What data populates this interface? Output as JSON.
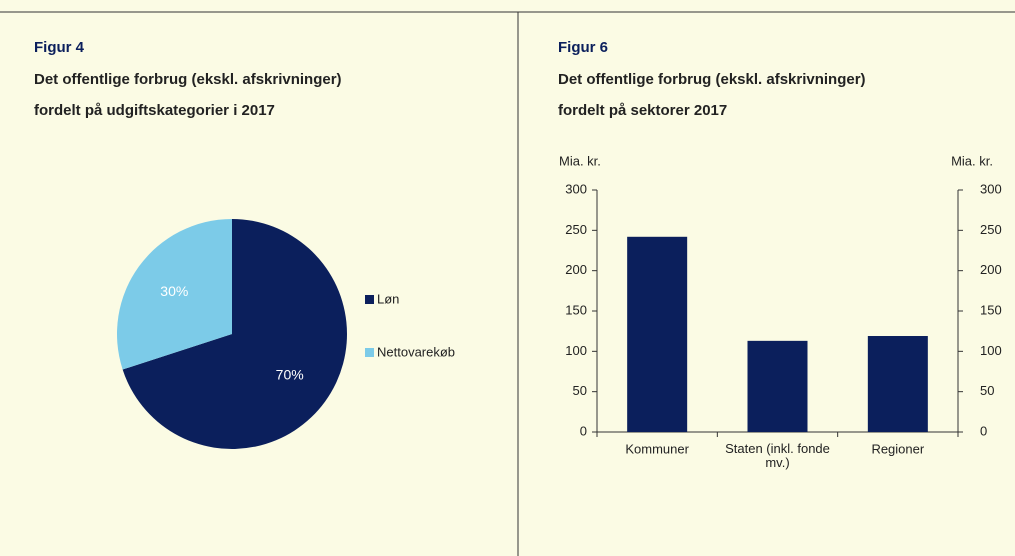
{
  "chart_data": [
    {
      "type": "pie",
      "figure_label": "Figur 4",
      "title": [
        "Det offentlige forbrug (ekskl. afskrivninger)",
        "fordelt på udgiftskategorier  i  2017"
      ],
      "categories": [
        "Løn",
        "Nettovarekøb"
      ],
      "values": [
        70,
        30
      ],
      "value_labels": [
        "70%",
        "30%"
      ],
      "colors": [
        "#0b1f5c",
        "#7ccbe8"
      ],
      "legend": "right"
    },
    {
      "type": "bar",
      "figure_label": "Figur 6",
      "title": [
        "Det offentlige forbrug (ekskl. afskrivninger)",
        "fordelt på sektorer 2017"
      ],
      "y_label": "Mia. kr.",
      "y2_label": "Mia. kr.",
      "categories": [
        "Kommuner",
        "Staten (inkl. fonde mv.)",
        "Regioner"
      ],
      "values": [
        242,
        113,
        119
      ],
      "color": "#0b1f5c",
      "ylim": [
        0,
        300
      ],
      "yticks": [
        0,
        50,
        100,
        150,
        200,
        250,
        300
      ],
      "y2lim": [
        0,
        300
      ],
      "y2ticks": [
        0,
        50,
        100,
        150,
        200,
        250,
        300
      ]
    }
  ]
}
